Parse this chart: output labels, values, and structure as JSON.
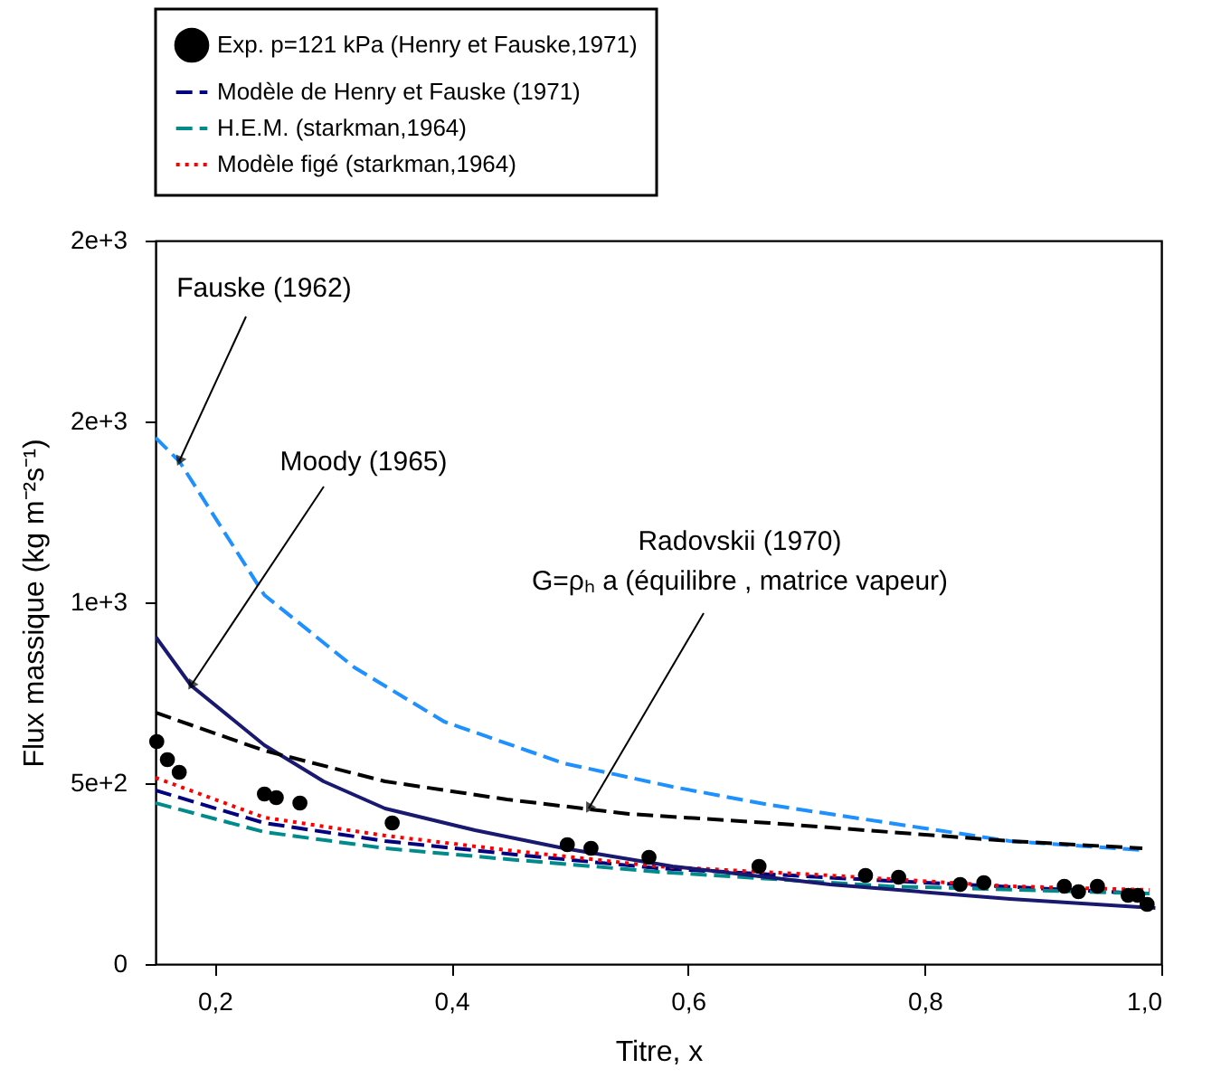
{
  "chart_data": {
    "type": "line",
    "xlabel": "Titre, x",
    "ylabel": "Flux massique (kg m⁻²s⁻¹)",
    "xlim": [
      0.15,
      1.0
    ],
    "xticks": [
      {
        "value": 0.2,
        "label": "0,2"
      },
      {
        "value": 0.4,
        "label": "0,4"
      },
      {
        "value": 0.6,
        "label": "0,6"
      },
      {
        "value": 0.8,
        "label": "0,8"
      },
      {
        "value": 1.0,
        "label": "1,0"
      }
    ],
    "ylim": [
      0,
      2000
    ],
    "yticks": [
      0,
      {
        "value": 500,
        "label": "5e+2"
      },
      {
        "value": 1000,
        "label": "1e+3"
      },
      {
        "value": 1500,
        "label": "2e+3"
      },
      {
        "value": 2000,
        "label": "2e+3"
      }
    ],
    "legend": "top left",
    "grid": false,
    "series": [
      {
        "name": "Exp. p=121 kPa (Henry et Fauske,1971)",
        "type": "scatter",
        "marker": "circle",
        "color": "#000000",
        "x": [
          0.151,
          0.16,
          0.17,
          0.242,
          0.252,
          0.272,
          0.35,
          0.498,
          0.518,
          0.567,
          0.66,
          0.75,
          0.778,
          0.83,
          0.85,
          0.918,
          0.93,
          0.946,
          0.972,
          0.98,
          0.988
        ],
        "values": [
          615,
          565,
          530,
          470,
          460,
          445,
          390,
          330,
          320,
          295,
          270,
          245,
          240,
          220,
          225,
          215,
          200,
          215,
          190,
          190,
          165
        ]
      },
      {
        "name": "Modèle de Henry et Fauske (1971)",
        "color": "#000080",
        "line_style": "dashed",
        "x": [
          0.15,
          0.242,
          0.344,
          0.447,
          0.574,
          0.77,
          0.984
        ],
        "values": [
          480,
          390,
          340,
          305,
          265,
          230,
          195
        ]
      },
      {
        "name": "H.E.M. (starkman,1964)",
        "color": "#008b8b",
        "line_style": "dashed",
        "x": [
          0.15,
          0.242,
          0.344,
          0.447,
          0.574,
          0.77,
          0.99
        ],
        "values": [
          445,
          365,
          320,
          290,
          255,
          215,
          195
        ]
      },
      {
        "name": "Modèle figé (starkman,1964)",
        "color": "#ff0000",
        "line_style": "dotted",
        "x": [
          0.15,
          0.242,
          0.344,
          0.447,
          0.574,
          0.72,
          0.872,
          0.99
        ],
        "values": [
          515,
          405,
          355,
          315,
          270,
          245,
          215,
          205
        ]
      },
      {
        "color": "#1e90ff",
        "line_style": "dashed",
        "x": [
          0.15,
          0.17,
          0.242,
          0.318,
          0.394,
          0.495,
          0.587,
          0.669,
          0.77,
          0.872,
          0.984
        ],
        "values": [
          1455,
          1390,
          1020,
          820,
          670,
          555,
          490,
          440,
          390,
          340,
          315
        ]
      },
      {
        "color": "#191970",
        "line_style": "solid",
        "x": [
          0.15,
          0.18,
          0.242,
          0.292,
          0.344,
          0.42,
          0.495,
          0.587,
          0.72,
          0.872,
          0.995
        ],
        "values": [
          905,
          770,
          605,
          505,
          430,
          370,
          320,
          270,
          220,
          180,
          155
        ]
      },
      {
        "color": "#000000",
        "line_style": "dashed",
        "x": [
          0.15,
          0.242,
          0.344,
          0.447,
          0.55,
          0.669,
          0.77,
          0.872,
          0.984
        ],
        "values": [
          695,
          590,
          505,
          455,
          415,
          390,
          365,
          340,
          320
        ]
      }
    ],
    "annotations": [
      {
        "text": "Fauske (1962)",
        "x": 0.17,
        "y": 1390
      },
      {
        "text": "Moody (1965)",
        "x": 0.18,
        "y": 770
      },
      {
        "text": "Radovskii (1970)\nG=ρₕ a (équilibre , matrice vapeur)",
        "x": 0.516,
        "y": 430
      }
    ]
  }
}
